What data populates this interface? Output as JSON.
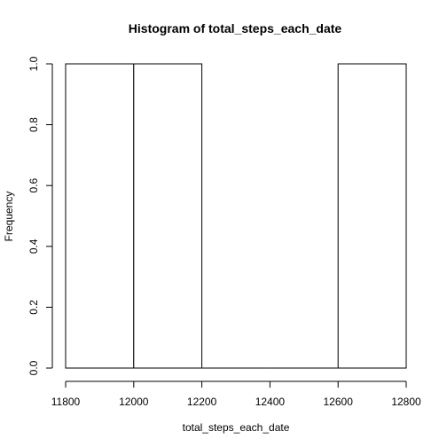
{
  "chart_data": {
    "type": "bar",
    "title": "Histogram of total_steps_each_date",
    "xlabel": "total_steps_each_date",
    "ylabel": "Frequency",
    "bins": [
      {
        "start": 11800,
        "end": 12000,
        "count": 1
      },
      {
        "start": 12000,
        "end": 12200,
        "count": 1
      },
      {
        "start": 12200,
        "end": 12400,
        "count": 0
      },
      {
        "start": 12400,
        "end": 12600,
        "count": 0
      },
      {
        "start": 12600,
        "end": 12800,
        "count": 1
      }
    ],
    "xlim": [
      11800,
      12800
    ],
    "ylim": [
      0,
      1
    ],
    "x_ticks": [
      "11800",
      "12000",
      "12200",
      "12400",
      "12600",
      "12800"
    ],
    "y_ticks": [
      "0.0",
      "0.2",
      "0.4",
      "0.6",
      "0.8",
      "1.0"
    ],
    "grid": false
  }
}
